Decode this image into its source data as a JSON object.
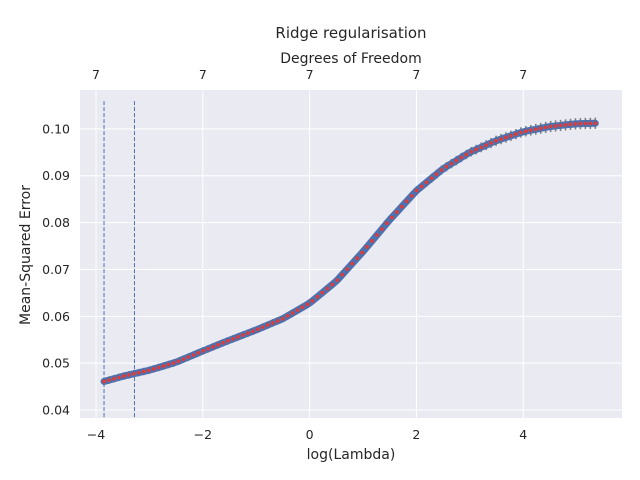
{
  "chart_data": {
    "type": "line",
    "title": "Ridge regularisation",
    "xlabel": "log(Lambda)",
    "ylabel": "Mean-Squared Error",
    "top_axis_label": "Degrees of Freedom",
    "xlim": [
      -4.3,
      5.85
    ],
    "ylim": [
      0.0383,
      0.1083
    ],
    "x_ticks": [
      -4,
      -2,
      0,
      2,
      4
    ],
    "x_tick_labels": [
      "−4",
      "−2",
      "0",
      "2",
      "4"
    ],
    "y_ticks": [
      0.04,
      0.05,
      0.06,
      0.07,
      0.08,
      0.09,
      0.1
    ],
    "y_tick_labels": [
      "0.04",
      "0.05",
      "0.06",
      "0.07",
      "0.08",
      "0.09",
      "0.10"
    ],
    "top_ticks": [
      -4,
      -2,
      0,
      2,
      4
    ],
    "top_tick_labels": [
      "7",
      "7",
      "7",
      "7",
      "7"
    ],
    "grid": true,
    "vertical_lines": [
      {
        "x": -3.85,
        "y_range": [
          0.0385,
          0.1062
        ]
      },
      {
        "x": -3.28,
        "y_range": [
          0.0385,
          0.1062
        ]
      }
    ],
    "series": [
      {
        "x": [
          -3.85,
          -3.5,
          -3.0,
          -2.5,
          -2.0,
          -1.5,
          -1.0,
          -0.5,
          0.0,
          0.5,
          1.0,
          1.5,
          2.0,
          2.5,
          3.0,
          3.5,
          4.0,
          4.5,
          5.0,
          5.35
        ],
        "y": [
          0.0461,
          0.0472,
          0.0485,
          0.0502,
          0.0526,
          0.0549,
          0.0571,
          0.0595,
          0.0628,
          0.0675,
          0.0738,
          0.0806,
          0.0868,
          0.0915,
          0.095,
          0.0975,
          0.0994,
          0.1005,
          0.1011,
          0.1012
        ],
        "error": [
          0.0008,
          0.0008,
          0.0008,
          0.0008,
          0.0008,
          0.0008,
          0.0008,
          0.0008,
          0.0008,
          0.0008,
          0.0008,
          0.0009,
          0.0009,
          0.001,
          0.001,
          0.0011,
          0.0011,
          0.0012,
          0.0012,
          0.0012
        ]
      }
    ],
    "colors": {
      "background": "#eaeaf2",
      "grid": "#ffffff",
      "line": "#4c72b0",
      "markers": "#dd3c3c",
      "errorbars": "#7f7f7f",
      "vlines": "#4c72b0"
    }
  }
}
